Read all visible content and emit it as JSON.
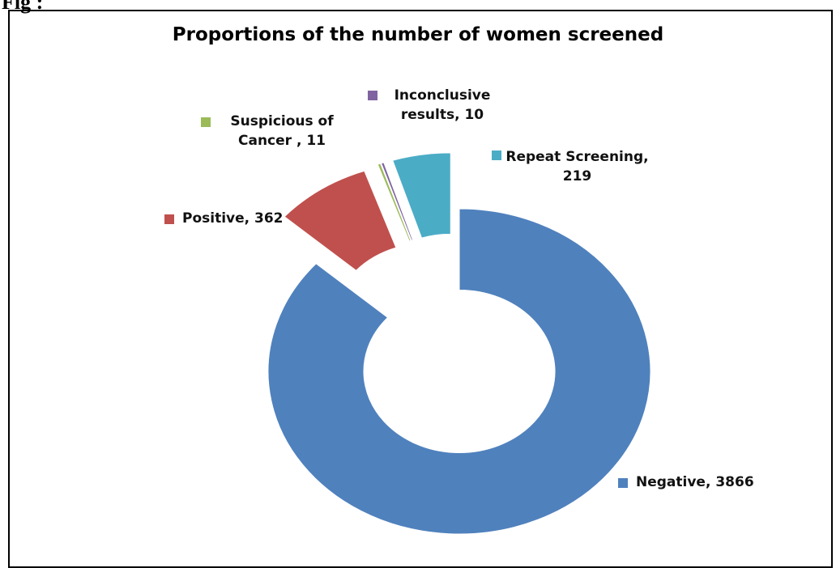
{
  "figure_label": "Fig :",
  "chart_data": {
    "type": "donut",
    "title": "Proportions of the number of women screened",
    "labels": [
      "Negative, 3866",
      "Positive, 362",
      "Suspicious of Cancer , 11",
      "Inconclusive results, 10",
      "Repeat Screening, 219"
    ],
    "values": [
      3866,
      362,
      11,
      10,
      219
    ],
    "colors": [
      "#4f81bd",
      "#c0504d",
      "#9bbb59",
      "#8064a2",
      "#4bacc6"
    ]
  }
}
